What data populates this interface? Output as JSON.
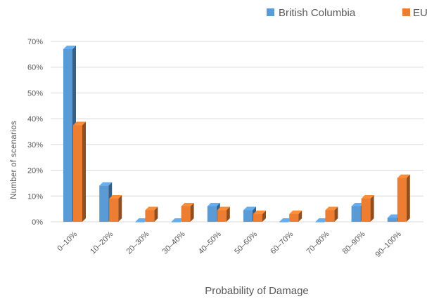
{
  "chart_data": {
    "type": "bar",
    "title": "",
    "xlabel": "Probability of Damage",
    "ylabel": "Number of scenarios",
    "ylim": [
      0,
      70
    ],
    "yticks": [
      "0%",
      "10%",
      "20%",
      "30%",
      "40%",
      "50%",
      "60%",
      "70%"
    ],
    "ytick_values": [
      0,
      10,
      20,
      30,
      40,
      50,
      60,
      70
    ],
    "categories": [
      "0–10%",
      "10–20%",
      "20–30%",
      "30–40%",
      "40–50%",
      "50–60%",
      "60–70%",
      "70–80%",
      "80–90%",
      "90–100%"
    ],
    "series": [
      {
        "name": "British Columbia",
        "color": "#5B9BD5",
        "values": [
          67,
          14,
          0,
          0,
          6,
          4.5,
          0,
          0,
          6,
          1.5
        ]
      },
      {
        "name": "EU",
        "color": "#ED7D31",
        "values": [
          37.5,
          9,
          4.5,
          6,
          4.5,
          3,
          3,
          4.5,
          9,
          17
        ]
      }
    ],
    "grid": true,
    "legend_position": "top-right",
    "style": "3d-clustered"
  }
}
